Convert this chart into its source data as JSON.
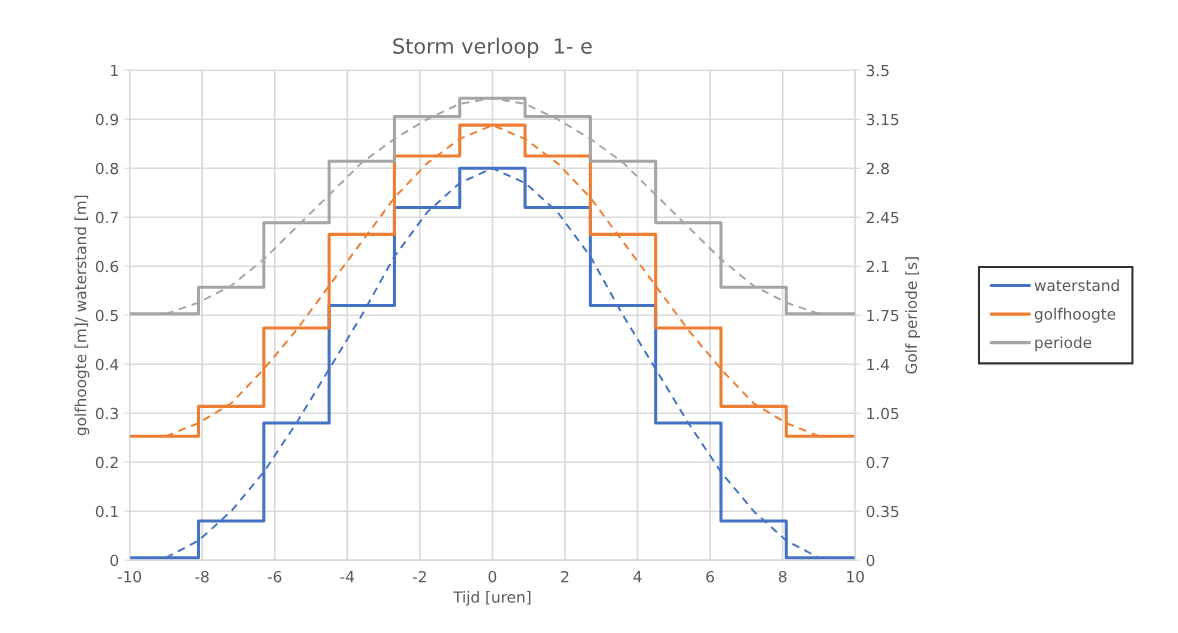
{
  "chart_data": {
    "type": "step",
    "title": "Storm verloop  1- e",
    "xlabel": "Tijd [uren]",
    "ylabel": "golfhoogte [m]/ waterstand [m]",
    "y2label": "Golf periode [s]",
    "xlim": [
      -10,
      10
    ],
    "xticks": [
      -10,
      -8,
      -6,
      -4,
      -2,
      0,
      2,
      4,
      6,
      8,
      10
    ],
    "ylim": [
      0,
      1
    ],
    "yticks": [
      0,
      0.1,
      0.2,
      0.3,
      0.4,
      0.5,
      0.6,
      0.7,
      0.8,
      0.9,
      1
    ],
    "y2lim": [
      0,
      3.5
    ],
    "y2ticks": [
      0,
      0.35,
      0.7,
      1.05,
      1.4,
      1.75,
      2.1,
      2.45,
      2.8,
      3.15,
      3.5
    ],
    "grid": true,
    "legend": "right",
    "series": [
      {
        "name": "waterstand",
        "color": "#4472c4",
        "x": [
          -10,
          -8.1,
          -6.3,
          -4.5,
          -2.7,
          -0.9,
          0.9,
          2.7,
          4.5,
          6.3,
          8.1,
          10
        ],
        "values": [
          0.005,
          0.08,
          0.28,
          0.52,
          0.72,
          0.8,
          0.72,
          0.52,
          0.28,
          0.08,
          0.005,
          0.005
        ]
      },
      {
        "name": "golfhoogte",
        "color": "#ed7d31",
        "x": [
          -10,
          -8.1,
          -6.3,
          -4.5,
          -2.7,
          -0.9,
          0.9,
          2.7,
          4.5,
          6.3,
          8.1,
          10
        ],
        "values": [
          0.253,
          0.314,
          0.474,
          0.665,
          0.825,
          0.888,
          0.825,
          0.665,
          0.474,
          0.314,
          0.253,
          0.253
        ]
      },
      {
        "name": "periode",
        "axis": "y2",
        "color": "#a5a5a5",
        "x": [
          -10,
          -8.1,
          -6.3,
          -4.5,
          -2.7,
          -0.9,
          0.9,
          2.7,
          4.5,
          6.3,
          8.1,
          10
        ],
        "values": [
          1.76,
          1.95,
          2.41,
          2.85,
          3.17,
          3.3,
          3.17,
          2.85,
          2.41,
          1.95,
          1.76,
          1.76
        ]
      },
      {
        "type": "line",
        "line_style": "dashed",
        "color": "#4472c4",
        "x": [
          -9,
          -8.1,
          -7.2,
          -6.3,
          -5.4,
          -4.5,
          -3.6,
          -2.7,
          -1.8,
          -0.9,
          0,
          0.9,
          1.8,
          2.7,
          3.6,
          4.5,
          5.4,
          6.3,
          7.2,
          8.1,
          9
        ],
        "values": [
          0.005,
          0.04,
          0.1,
          0.18,
          0.28,
          0.39,
          0.5,
          0.62,
          0.71,
          0.77,
          0.8,
          0.77,
          0.71,
          0.62,
          0.5,
          0.39,
          0.28,
          0.18,
          0.1,
          0.04,
          0.005
        ]
      },
      {
        "type": "line",
        "line_style": "dashed",
        "color": "#ed7d31",
        "x": [
          -9,
          -8.1,
          -7.2,
          -6.3,
          -5.4,
          -4.5,
          -3.6,
          -2.7,
          -1.8,
          -0.9,
          0,
          0.9,
          1.8,
          2.7,
          3.6,
          4.5,
          5.4,
          6.3,
          7.2,
          8.1,
          9
        ],
        "values": [
          0.253,
          0.28,
          0.32,
          0.39,
          0.47,
          0.56,
          0.65,
          0.74,
          0.81,
          0.86,
          0.888,
          0.86,
          0.81,
          0.74,
          0.65,
          0.56,
          0.47,
          0.39,
          0.32,
          0.28,
          0.253
        ]
      },
      {
        "type": "line",
        "line_style": "dashed",
        "axis": "y2",
        "color": "#a5a5a5",
        "x": [
          -9,
          -8.1,
          -7.2,
          -6.3,
          -5.4,
          -4.5,
          -3.6,
          -2.7,
          -1.8,
          -0.9,
          0,
          0.9,
          1.8,
          2.7,
          3.6,
          4.5,
          5.4,
          6.3,
          7.2,
          8.1,
          9
        ],
        "values": [
          1.76,
          1.84,
          1.96,
          2.15,
          2.38,
          2.61,
          2.84,
          3.01,
          3.15,
          3.26,
          3.3,
          3.26,
          3.15,
          3.01,
          2.84,
          2.61,
          2.38,
          2.15,
          1.96,
          1.84,
          1.76
        ]
      }
    ]
  }
}
